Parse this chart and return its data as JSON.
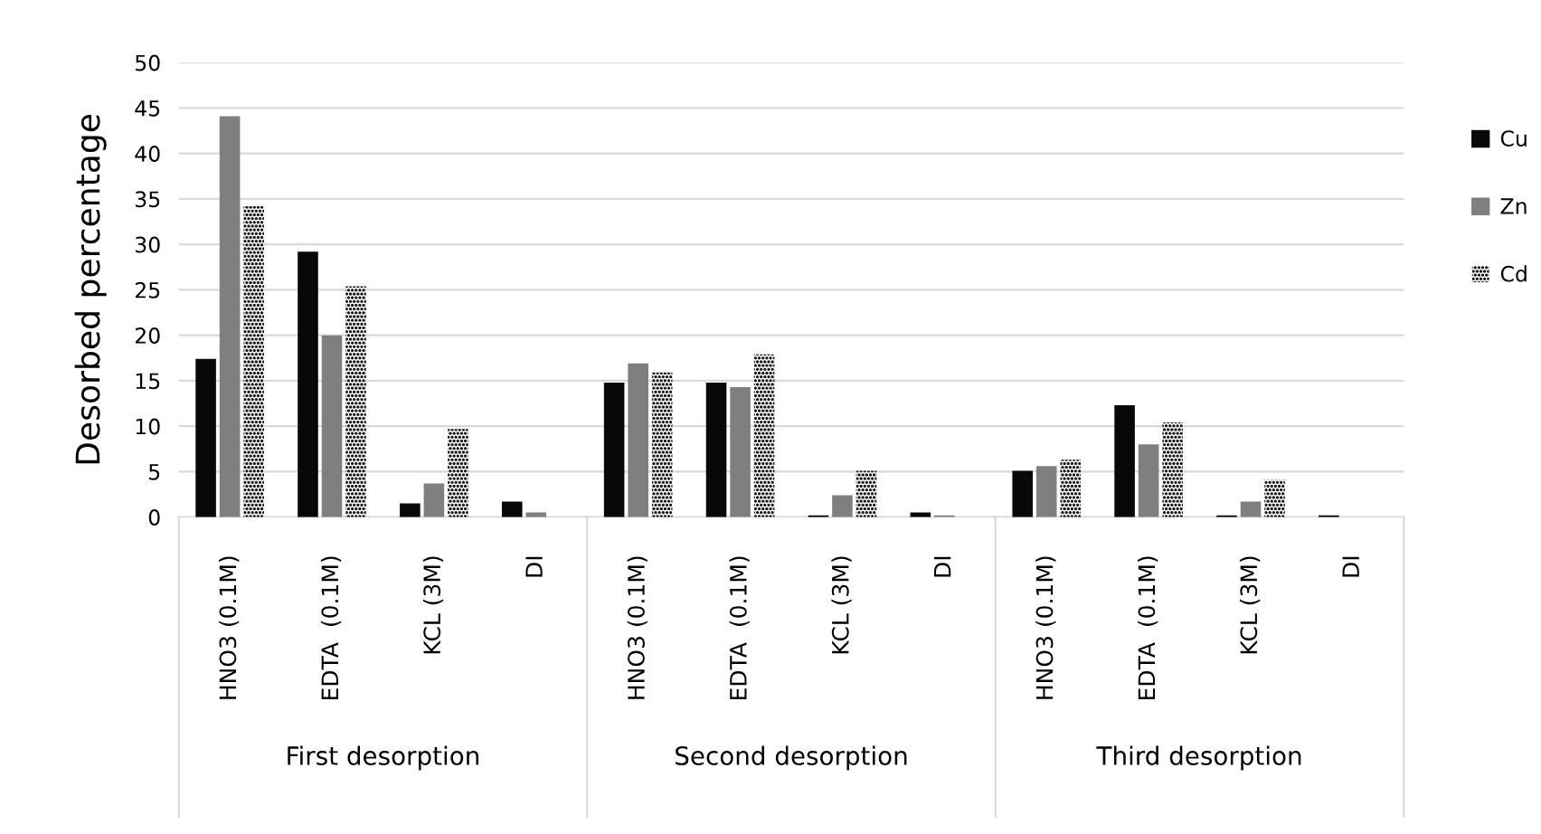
{
  "chart_data": {
    "type": "bar",
    "ylabel": "Desorbed percentage",
    "categories": [
      "HNO3 (0.1M)",
      "EDTA  (0.1M)",
      "KCL (3M)",
      "DI",
      "HNO3 (0.1M)",
      "EDTA  (0.1M)",
      "KCL (3M)",
      "DI",
      "HNO3 (0.1M)",
      "EDTA  (0.1M)",
      "KCL (3M)",
      "DI"
    ],
    "series": [
      {
        "name": "Cu",
        "color": "#080808",
        "values": [
          17.4,
          29.2,
          1.5,
          1.7,
          14.8,
          14.8,
          0.2,
          0.5,
          5.1,
          12.3,
          0.2,
          0.2
        ]
      },
      {
        "name": "Zn",
        "color": "#7f7f7f",
        "values": [
          44.1,
          20.0,
          3.7,
          0.5,
          16.9,
          14.3,
          2.4,
          0.2,
          5.6,
          8.0,
          1.7,
          0
        ]
      },
      {
        "name": "Cd",
        "color": "#1a1a1a",
        "values": [
          34.2,
          25.4,
          9.7,
          0,
          15.9,
          17.9,
          5.1,
          0,
          6.3,
          10.4,
          4.1,
          0
        ]
      }
    ],
    "annotations": [
      "First desorption",
      "Second desorption",
      "Third desorption"
    ],
    "ylim": [
      0,
      50
    ],
    "yticks": [
      0,
      5,
      10,
      15,
      20,
      25,
      30,
      35,
      40,
      45,
      50
    ],
    "grid": "y",
    "legend": "right"
  }
}
